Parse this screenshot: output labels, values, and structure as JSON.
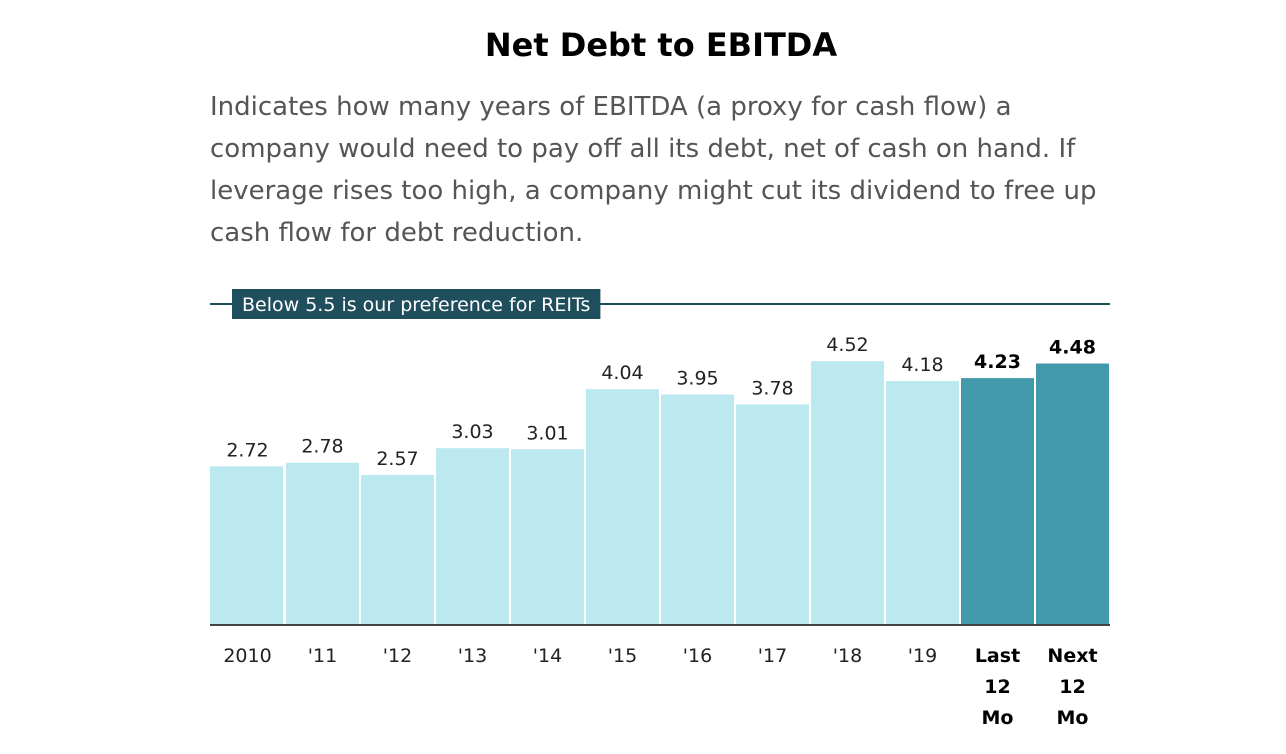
{
  "title": "Net Debt to EBITDA",
  "subtitle": "Indicates how many years of EBITDA (a proxy for cash flow) a company would need to pay off all its debt, net of cash on hand. If leverage rises too high, a company might cut its dividend to free up cash flow for debt reduction.",
  "colors": {
    "bar": "#bce8ef",
    "bar_highlight": "#4399ac",
    "reference_line": "#1f4e5c",
    "reference_label_bg": "#1f4e5c",
    "axis": "#444444"
  },
  "chart_data": {
    "type": "bar",
    "categories": [
      "2010",
      "'11",
      "'12",
      "'13",
      "'14",
      "'15",
      "'16",
      "'17",
      "'18",
      "'19",
      "Last 12 Mo",
      "Next 12 Mo"
    ],
    "category_lines": [
      [
        "2010"
      ],
      [
        "'11"
      ],
      [
        "'12"
      ],
      [
        "'13"
      ],
      [
        "'14"
      ],
      [
        "'15"
      ],
      [
        "'16"
      ],
      [
        "'17"
      ],
      [
        "'18"
      ],
      [
        "'19"
      ],
      [
        "Last",
        "12",
        "Mo"
      ],
      [
        "Next",
        "12",
        "Mo"
      ]
    ],
    "values": [
      2.72,
      2.78,
      2.57,
      3.03,
      3.01,
      4.04,
      3.95,
      3.78,
      4.52,
      4.18,
      4.23,
      4.48
    ],
    "highlighted": [
      false,
      false,
      false,
      false,
      false,
      false,
      false,
      false,
      false,
      false,
      true,
      true
    ],
    "title": "Net Debt to EBITDA",
    "xlabel": "",
    "ylabel": "",
    "ylim": [
      0,
      5.5
    ],
    "grid": false,
    "reference_line": {
      "value": 5.5,
      "label": "Below 5.5 is our preference for REITs"
    }
  }
}
